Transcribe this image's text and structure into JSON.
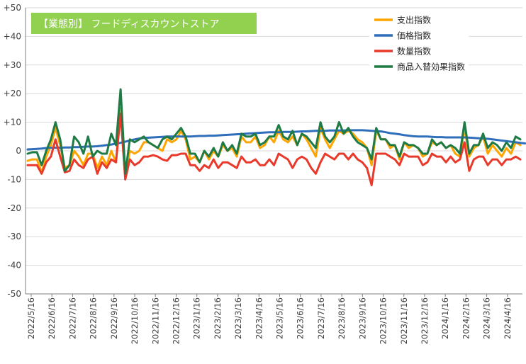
{
  "chart_data": {
    "type": "line",
    "title": "【業態別】 フードディスカウントストア",
    "colors": {
      "title_bg": "#92D050",
      "title_text": "#ffffff",
      "grid": "#d9d9d9",
      "axis": "#7f7f7f"
    },
    "legend_position": "top-right",
    "grid": true,
    "ylim": [
      -50,
      50
    ],
    "y_ticks": [
      "+50",
      "+40",
      "+30",
      "+20",
      "+10",
      "0",
      "-10",
      "-20",
      "-30",
      "-40",
      "-50"
    ],
    "x_tick_labels": [
      "2022/5/16",
      "2022/6/16",
      "2022/7/16",
      "2022/8/16",
      "2022/9/16",
      "2022/10/16",
      "2022/11/16",
      "2022/12/16",
      "2023/1/16",
      "2023/2/16",
      "2023/3/16",
      "2023/4/16",
      "2023/5/16",
      "2023/6/16",
      "2023/7/16",
      "2023/8/16",
      "2023/9/16",
      "2023/10/16",
      "2023/11/16",
      "2023/12/16",
      "2024/1/16",
      "2024/2/16",
      "2024/3/16",
      "2024/4/16"
    ],
    "series": [
      {
        "name": "支出指数",
        "color": "#FFA500",
        "values": [
          -3.5,
          -3,
          -3,
          -7.5,
          -2,
          2,
          8,
          2,
          -6,
          -5,
          0,
          -2,
          -5,
          -1,
          -1,
          -6,
          -2,
          -5,
          0,
          -4,
          15,
          -9,
          0,
          -1,
          0,
          3,
          3,
          2,
          1,
          0,
          4,
          3,
          4,
          7,
          4,
          -3,
          -2,
          -4,
          0,
          -3,
          0,
          -2,
          2,
          0,
          1,
          -2,
          5,
          3,
          3,
          5,
          1,
          2,
          5,
          3,
          7,
          4,
          3,
          5,
          2,
          6,
          4,
          1,
          -2,
          8,
          4,
          1,
          4,
          7,
          6,
          7,
          6,
          4,
          3,
          1,
          -5,
          7,
          4,
          4,
          1,
          2,
          -3,
          3,
          1,
          2,
          1,
          -2,
          -1,
          3,
          2,
          3,
          1,
          2,
          -1,
          -2,
          8,
          -2,
          1,
          2,
          5,
          -1,
          2,
          0,
          -2,
          1,
          -1,
          3,
          2
        ]
      },
      {
        "name": "価格指数",
        "color": "#2F6EBA",
        "values": [
          0.5,
          0.6,
          0.7,
          0.8,
          1,
          1.1,
          1.1,
          1.1,
          1.2,
          1.2,
          1.3,
          1.3,
          1.4,
          1.5,
          1.5,
          1.6,
          1.8,
          2,
          2.2,
          2.5,
          2.8,
          3.2,
          3.6,
          4,
          4.3,
          4.5,
          4.6,
          4.7,
          4.8,
          4.9,
          5,
          5,
          5,
          5,
          5,
          5,
          5.1,
          5.2,
          5.2,
          5.3,
          5.3,
          5.4,
          5.5,
          5.6,
          5.7,
          5.8,
          5.9,
          6,
          6.1,
          6.2,
          6.3,
          6.4,
          6.5,
          6.5,
          6.5,
          6.6,
          6.6,
          6.6,
          6.7,
          6.8,
          6.8,
          6.9,
          7,
          7,
          7,
          7.1,
          7.1,
          7.1,
          7.1,
          7.2,
          7.2,
          7.2,
          7.2,
          7.1,
          7,
          6.9,
          6.8,
          6.5,
          6.2,
          6,
          5.8,
          5.5,
          5.3,
          5.1,
          5,
          5,
          5,
          4.9,
          4.8,
          4.8,
          4.7,
          4.7,
          4.7,
          4.7,
          4.7,
          4.6,
          4.5,
          4.4,
          4.3,
          4.2,
          4,
          3.8,
          3.6,
          3.4,
          3.2,
          3,
          2.8,
          2.6
        ]
      },
      {
        "name": "数量指数",
        "color": "#E8392B",
        "values": [
          -5,
          -5,
          -5,
          -8,
          -4,
          -2,
          4,
          -2,
          -7.5,
          -7,
          -3,
          -5,
          -6,
          -3,
          -2,
          -8,
          -4,
          -6,
          -3,
          -4,
          13,
          -10,
          -3,
          -5,
          -4,
          -2,
          -2,
          -1.5,
          -2,
          -3,
          -3.5,
          -1.5,
          -1.5,
          -1,
          -1,
          -5,
          -5,
          -7,
          -5,
          -6,
          -3,
          -6,
          -4,
          -4,
          -5,
          -6,
          -2,
          -4,
          -4,
          -3,
          -5,
          -5,
          -3,
          -5,
          -1,
          -2,
          -3,
          -6,
          -3,
          -2,
          -3,
          -6,
          -8,
          -4,
          -1,
          -2,
          -3,
          -1,
          -1,
          -3,
          -1,
          -3,
          -4,
          -6,
          -12,
          -1,
          -1,
          -1,
          -2,
          -3,
          -5,
          -1,
          -2,
          -2,
          -2,
          -5,
          -4,
          -1,
          -2,
          -2,
          -4,
          -2,
          -4,
          -3,
          3,
          -7,
          -3,
          -2,
          -2,
          -5,
          -3,
          -3,
          -5,
          -3,
          -3,
          -2,
          -3
        ]
      },
      {
        "name": "商品入替効果指数",
        "color": "#1E7B45",
        "values": [
          -1,
          -0.5,
          -0.5,
          -5,
          0,
          4,
          10,
          4,
          -7,
          -5,
          5,
          3,
          -1,
          5,
          -2,
          0,
          -1,
          -1,
          6,
          2,
          21.5,
          -8,
          4,
          3,
          4,
          5,
          3,
          2,
          1,
          4,
          5,
          4,
          6,
          8,
          5,
          -1,
          -1,
          -4,
          0,
          -2,
          1,
          -2,
          3,
          0,
          2,
          -1,
          6,
          5,
          5,
          6,
          2,
          3,
          5,
          5,
          9,
          5,
          4,
          7,
          2,
          6,
          5,
          3,
          1,
          10,
          5,
          3,
          5,
          10,
          6,
          8,
          5,
          3,
          2,
          1,
          -3,
          8,
          4,
          4,
          2,
          2,
          -2,
          3,
          2,
          2,
          1,
          -1,
          -1,
          4,
          2,
          3,
          1,
          2,
          1,
          -1,
          10,
          -1,
          2,
          2,
          6,
          1,
          3,
          2,
          0,
          3,
          1,
          5,
          4
        ]
      }
    ]
  }
}
